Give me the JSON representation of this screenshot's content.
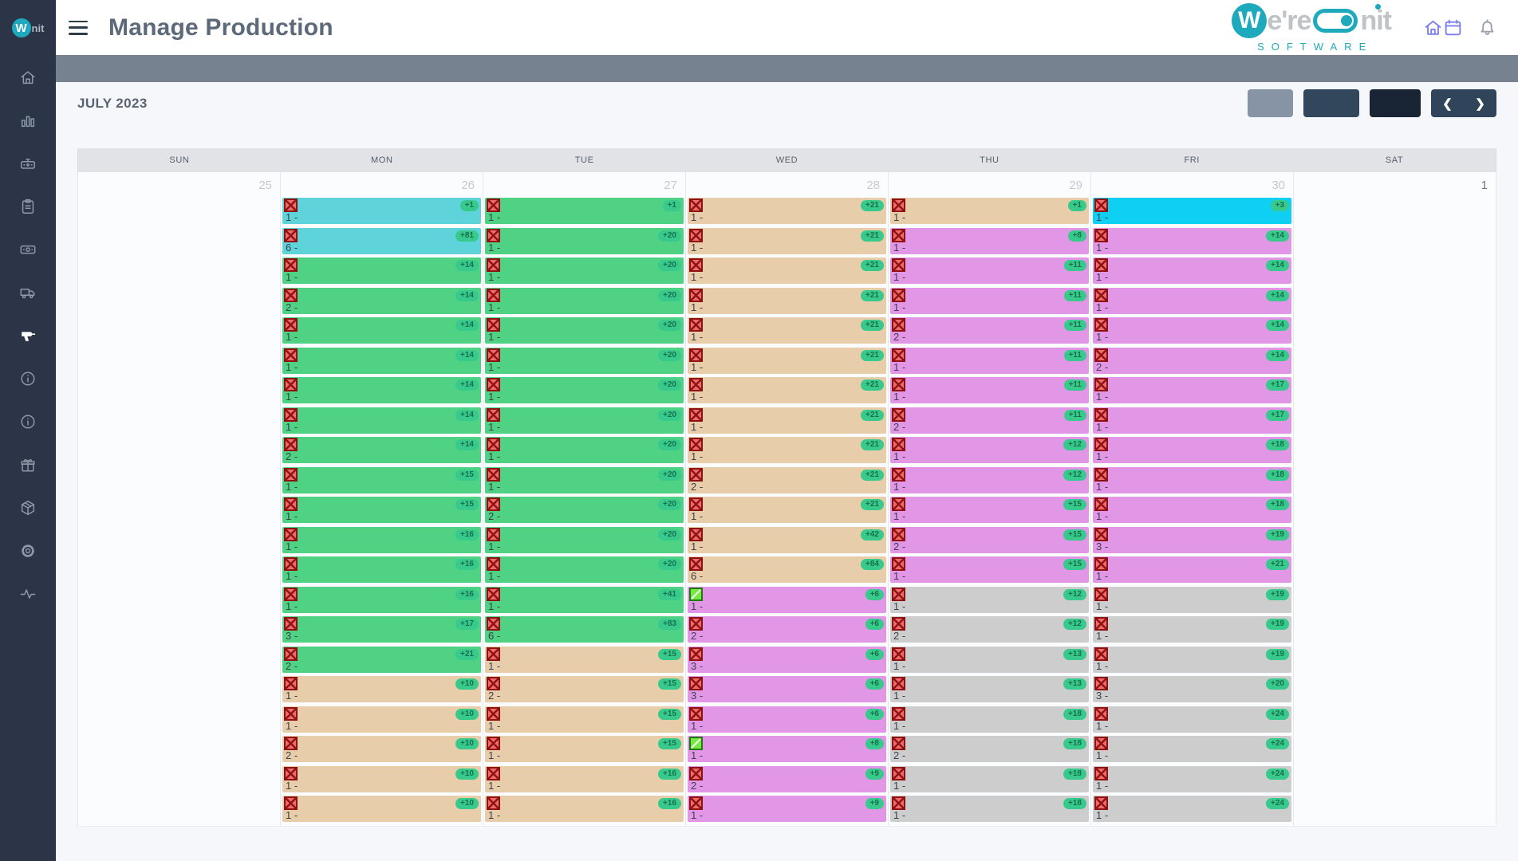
{
  "app": {
    "title": "Manage Production",
    "sidebar_logo": {
      "letter": "W",
      "suffix": "nit"
    },
    "brand": {
      "letter": "W",
      "part1": "e're",
      "part2": "nit",
      "subtitle": "SOFTWARE",
      "teal": "#1fa9bd",
      "gray_text": "#bfc2c6"
    },
    "header_icons": [
      "home-icon",
      "calendar-icon",
      "bell-icon"
    ]
  },
  "sidebar": {
    "active": "drill",
    "icons": [
      "home",
      "bar-chart",
      "cash-drawer",
      "clipboard",
      "banknote",
      "truck",
      "drill",
      "info",
      "info-alt",
      "gift",
      "package",
      "gear",
      "activity"
    ]
  },
  "toolbar": {
    "month_label": "JULY 2023",
    "buttons": [
      {
        "id": "view-light",
        "color": "#8694a6",
        "label": ""
      },
      {
        "id": "view-mid",
        "color": "#33475c",
        "label": ""
      },
      {
        "id": "view-dark",
        "color": "#192434",
        "label": ""
      }
    ],
    "prev_label": "❮",
    "next_label": "❯"
  },
  "calendar": {
    "day_headers": [
      "SUN",
      "MON",
      "TUE",
      "WED",
      "THU",
      "FRI",
      "SAT"
    ],
    "status_colors": {
      "turquoise": "#5ed3da",
      "green": "#4fd283",
      "tan": "#e7cdaa",
      "violet": "#e297e6",
      "cyan": "#0fd0f2",
      "gray": "#cdcdcd",
      "badge_bg": "#38c98d",
      "badge_text": "#17714a"
    },
    "days": [
      {
        "date": "25",
        "muted": true,
        "events": []
      },
      {
        "date": "26",
        "muted": true,
        "events": [
          {
            "color": "turquoise",
            "icon": "cancel",
            "count": "1 -",
            "badge": "+1"
          },
          {
            "color": "turquoise",
            "icon": "cancel",
            "count": "6 -",
            "badge": "+81"
          },
          {
            "color": "green",
            "icon": "cancel",
            "count": "1 -",
            "badge": "+14"
          },
          {
            "color": "green",
            "icon": "cancel",
            "count": "2 -",
            "badge": "+14"
          },
          {
            "color": "green",
            "icon": "cancel",
            "count": "1 -",
            "badge": "+14"
          },
          {
            "color": "green",
            "icon": "cancel",
            "count": "1 -",
            "badge": "+14"
          },
          {
            "color": "green",
            "icon": "cancel",
            "count": "1 -",
            "badge": "+14"
          },
          {
            "color": "green",
            "icon": "cancel",
            "count": "1 -",
            "badge": "+14"
          },
          {
            "color": "green",
            "icon": "cancel",
            "count": "2 -",
            "badge": "+14"
          },
          {
            "color": "green",
            "icon": "cancel",
            "count": "1 -",
            "badge": "+15"
          },
          {
            "color": "green",
            "icon": "cancel",
            "count": "1 -",
            "badge": "+15"
          },
          {
            "color": "green",
            "icon": "cancel",
            "count": "1 -",
            "badge": "+16"
          },
          {
            "color": "green",
            "icon": "cancel",
            "count": "1 -",
            "badge": "+16"
          },
          {
            "color": "green",
            "icon": "cancel",
            "count": "1 -",
            "badge": "+16"
          },
          {
            "color": "green",
            "icon": "cancel",
            "count": "3 -",
            "badge": "+17"
          },
          {
            "color": "green",
            "icon": "cancel",
            "count": "2 -",
            "badge": "+21"
          },
          {
            "color": "tan",
            "icon": "cancel",
            "count": "1 -",
            "badge": "+10"
          },
          {
            "color": "tan",
            "icon": "cancel",
            "count": "1 -",
            "badge": "+10"
          },
          {
            "color": "tan",
            "icon": "cancel",
            "count": "2 -",
            "badge": "+10"
          },
          {
            "color": "tan",
            "icon": "cancel",
            "count": "1 -",
            "badge": "+10"
          },
          {
            "color": "tan",
            "icon": "cancel",
            "count": "1 -",
            "badge": "+10"
          }
        ]
      },
      {
        "date": "27",
        "muted": true,
        "events": [
          {
            "color": "green",
            "icon": "cancel",
            "count": "1 -",
            "badge": "+1"
          },
          {
            "color": "green",
            "icon": "cancel",
            "count": "1 -",
            "badge": "+20"
          },
          {
            "color": "green",
            "icon": "cancel",
            "count": "1 -",
            "badge": "+20"
          },
          {
            "color": "green",
            "icon": "cancel",
            "count": "1 -",
            "badge": "+20"
          },
          {
            "color": "green",
            "icon": "cancel",
            "count": "1 -",
            "badge": "+20"
          },
          {
            "color": "green",
            "icon": "cancel",
            "count": "1 -",
            "badge": "+20"
          },
          {
            "color": "green",
            "icon": "cancel",
            "count": "1 -",
            "badge": "+20"
          },
          {
            "color": "green",
            "icon": "cancel",
            "count": "1 -",
            "badge": "+20"
          },
          {
            "color": "green",
            "icon": "cancel",
            "count": "1 -",
            "badge": "+20"
          },
          {
            "color": "green",
            "icon": "cancel",
            "count": "1 -",
            "badge": "+20"
          },
          {
            "color": "green",
            "icon": "cancel",
            "count": "2 -",
            "badge": "+20"
          },
          {
            "color": "green",
            "icon": "cancel",
            "count": "1 -",
            "badge": "+20"
          },
          {
            "color": "green",
            "icon": "cancel",
            "count": "1 -",
            "badge": "+20"
          },
          {
            "color": "green",
            "icon": "cancel",
            "count": "1 -",
            "badge": "+41"
          },
          {
            "color": "green",
            "icon": "cancel",
            "count": "6 -",
            "badge": "+83"
          },
          {
            "color": "tan",
            "icon": "cancel",
            "count": "1 -",
            "badge": "+15"
          },
          {
            "color": "tan",
            "icon": "cancel",
            "count": "2 -",
            "badge": "+15"
          },
          {
            "color": "tan",
            "icon": "cancel",
            "count": "1 -",
            "badge": "+15"
          },
          {
            "color": "tan",
            "icon": "cancel",
            "count": "1 -",
            "badge": "+15"
          },
          {
            "color": "tan",
            "icon": "cancel",
            "count": "1 -",
            "badge": "+16"
          },
          {
            "color": "tan",
            "icon": "cancel",
            "count": "1 -",
            "badge": "+16"
          }
        ]
      },
      {
        "date": "28",
        "muted": true,
        "events": [
          {
            "color": "tan",
            "icon": "cancel",
            "count": "1 -",
            "badge": "+21"
          },
          {
            "color": "tan",
            "icon": "cancel",
            "count": "1 -",
            "badge": "+21"
          },
          {
            "color": "tan",
            "icon": "cancel",
            "count": "1 -",
            "badge": "+21"
          },
          {
            "color": "tan",
            "icon": "cancel",
            "count": "1 -",
            "badge": "+21"
          },
          {
            "color": "tan",
            "icon": "cancel",
            "count": "1 -",
            "badge": "+21"
          },
          {
            "color": "tan",
            "icon": "cancel",
            "count": "1 -",
            "badge": "+21"
          },
          {
            "color": "tan",
            "icon": "cancel",
            "count": "1 -",
            "badge": "+21"
          },
          {
            "color": "tan",
            "icon": "cancel",
            "count": "1 -",
            "badge": "+21"
          },
          {
            "color": "tan",
            "icon": "cancel",
            "count": "1 -",
            "badge": "+21"
          },
          {
            "color": "tan",
            "icon": "cancel",
            "count": "2 -",
            "badge": "+21"
          },
          {
            "color": "tan",
            "icon": "cancel",
            "count": "1 -",
            "badge": "+21"
          },
          {
            "color": "tan",
            "icon": "cancel",
            "count": "1 -",
            "badge": "+42"
          },
          {
            "color": "tan",
            "icon": "cancel",
            "count": "6 -",
            "badge": "+84"
          },
          {
            "color": "violet",
            "icon": "check",
            "count": "1 -",
            "badge": "+6"
          },
          {
            "color": "violet",
            "icon": "cancel",
            "count": "2 -",
            "badge": "+6"
          },
          {
            "color": "violet",
            "icon": "cancel",
            "count": "3 -",
            "badge": "+6"
          },
          {
            "color": "violet",
            "icon": "cancel",
            "count": "3 -",
            "badge": "+6"
          },
          {
            "color": "violet",
            "icon": "cancel",
            "count": "1 -",
            "badge": "+6"
          },
          {
            "color": "violet",
            "icon": "check",
            "count": "1 -",
            "badge": "+8"
          },
          {
            "color": "violet",
            "icon": "cancel",
            "count": "2 -",
            "badge": "+9"
          },
          {
            "color": "violet",
            "icon": "cancel",
            "count": "1 -",
            "badge": "+9"
          }
        ]
      },
      {
        "date": "29",
        "muted": true,
        "events": [
          {
            "color": "tan",
            "icon": "cancel",
            "count": "1 -",
            "badge": "+1"
          },
          {
            "color": "violet",
            "icon": "cancel",
            "count": "1 -",
            "badge": "+8"
          },
          {
            "color": "violet",
            "icon": "cancel",
            "count": "1 -",
            "badge": "+11"
          },
          {
            "color": "violet",
            "icon": "cancel",
            "count": "1 -",
            "badge": "+11"
          },
          {
            "color": "violet",
            "icon": "cancel",
            "count": "2 -",
            "badge": "+11"
          },
          {
            "color": "violet",
            "icon": "cancel",
            "count": "1 -",
            "badge": "+11"
          },
          {
            "color": "violet",
            "icon": "cancel",
            "count": "1 -",
            "badge": "+11"
          },
          {
            "color": "violet",
            "icon": "cancel",
            "count": "2 -",
            "badge": "+11"
          },
          {
            "color": "violet",
            "icon": "cancel",
            "count": "1 -",
            "badge": "+12"
          },
          {
            "color": "violet",
            "icon": "cancel",
            "count": "1 -",
            "badge": "+12"
          },
          {
            "color": "violet",
            "icon": "cancel",
            "count": "1 -",
            "badge": "+15"
          },
          {
            "color": "violet",
            "icon": "cancel",
            "count": "2 -",
            "badge": "+15"
          },
          {
            "color": "violet",
            "icon": "cancel",
            "count": "1 -",
            "badge": "+15"
          },
          {
            "color": "gray",
            "icon": "cancel",
            "count": "1 -",
            "badge": "+12"
          },
          {
            "color": "gray",
            "icon": "cancel",
            "count": "2 -",
            "badge": "+12"
          },
          {
            "color": "gray",
            "icon": "cancel",
            "count": "1 -",
            "badge": "+13"
          },
          {
            "color": "gray",
            "icon": "cancel",
            "count": "1 -",
            "badge": "+13"
          },
          {
            "color": "gray",
            "icon": "cancel",
            "count": "1 -",
            "badge": "+18"
          },
          {
            "color": "gray",
            "icon": "cancel",
            "count": "2 -",
            "badge": "+18"
          },
          {
            "color": "gray",
            "icon": "cancel",
            "count": "1 -",
            "badge": "+18"
          },
          {
            "color": "gray",
            "icon": "cancel",
            "count": "1 -",
            "badge": "+18"
          }
        ]
      },
      {
        "date": "30",
        "muted": true,
        "events": [
          {
            "color": "cyan",
            "icon": "cancel",
            "count": "1 -",
            "badge": "+3"
          },
          {
            "color": "violet",
            "icon": "cancel",
            "count": "1 -",
            "badge": "+14"
          },
          {
            "color": "violet",
            "icon": "cancel",
            "count": "1 -",
            "badge": "+14"
          },
          {
            "color": "violet",
            "icon": "cancel",
            "count": "1 -",
            "badge": "+14"
          },
          {
            "color": "violet",
            "icon": "cancel",
            "count": "1 -",
            "badge": "+14"
          },
          {
            "color": "violet",
            "icon": "cancel",
            "count": "2 -",
            "badge": "+14"
          },
          {
            "color": "violet",
            "icon": "cancel",
            "count": "1 -",
            "badge": "+17"
          },
          {
            "color": "violet",
            "icon": "cancel",
            "count": "1 -",
            "badge": "+17"
          },
          {
            "color": "violet",
            "icon": "cancel",
            "count": "1 -",
            "badge": "+18"
          },
          {
            "color": "violet",
            "icon": "cancel",
            "count": "1 -",
            "badge": "+18"
          },
          {
            "color": "violet",
            "icon": "cancel",
            "count": "1 -",
            "badge": "+18"
          },
          {
            "color": "violet",
            "icon": "cancel",
            "count": "3 -",
            "badge": "+19"
          },
          {
            "color": "violet",
            "icon": "cancel",
            "count": "1 -",
            "badge": "+21"
          },
          {
            "color": "gray",
            "icon": "cancel",
            "count": "1 -",
            "badge": "+19"
          },
          {
            "color": "gray",
            "icon": "cancel",
            "count": "1 -",
            "badge": "+19"
          },
          {
            "color": "gray",
            "icon": "cancel",
            "count": "1 -",
            "badge": "+19"
          },
          {
            "color": "gray",
            "icon": "cancel",
            "count": "3 -",
            "badge": "+20"
          },
          {
            "color": "gray",
            "icon": "cancel",
            "count": "1 -",
            "badge": "+24"
          },
          {
            "color": "gray",
            "icon": "cancel",
            "count": "1 -",
            "badge": "+24"
          },
          {
            "color": "gray",
            "icon": "cancel",
            "count": "1 -",
            "badge": "+24"
          },
          {
            "color": "gray",
            "icon": "cancel",
            "count": "1 -",
            "badge": "+24"
          }
        ]
      },
      {
        "date": "1",
        "muted": false,
        "events": []
      }
    ]
  }
}
